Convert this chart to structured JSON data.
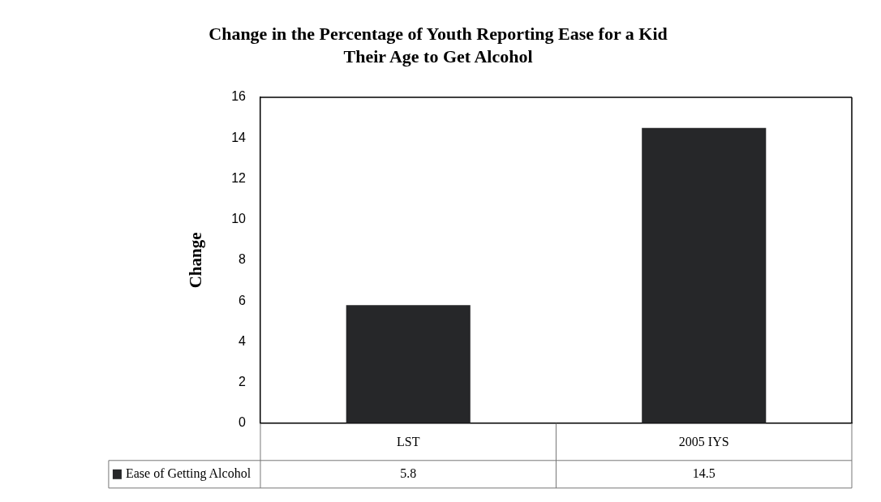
{
  "chart_data": {
    "type": "bar",
    "title": "Change in the Percentage of Youth Reporting Ease for a Kid Their Age to Get Alcohol",
    "ylabel": "Change",
    "categories": [
      "LST",
      "2005 IYS"
    ],
    "series": [
      {
        "name": "Ease of Getting Alcohol",
        "color": "#262729",
        "values": [
          5.8,
          14.5
        ]
      }
    ],
    "ylim": [
      0,
      16
    ],
    "yticks": [
      0,
      2,
      4,
      6,
      8,
      10,
      12,
      14,
      16
    ],
    "grid": false,
    "legend": "bottom",
    "data_labels": true
  }
}
